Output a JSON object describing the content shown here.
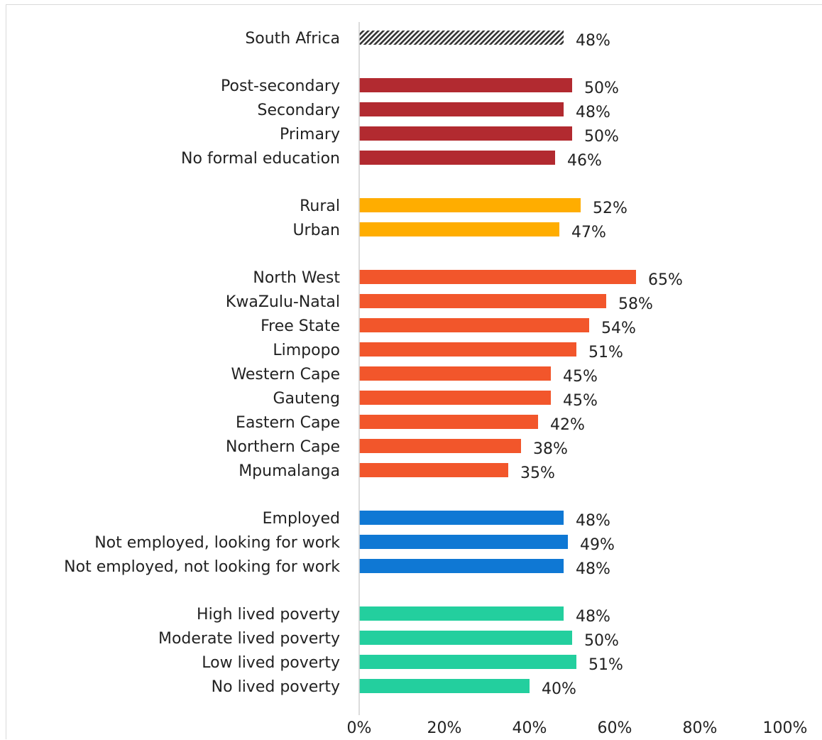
{
  "chart_data": {
    "type": "bar",
    "orientation": "horizontal",
    "xlim": [
      0,
      100
    ],
    "x_ticks": [
      "0%",
      "20%",
      "40%",
      "60%",
      "80%",
      "100%"
    ],
    "value_suffix": "%",
    "groups": [
      {
        "color": "#333333",
        "pattern": "hatched",
        "bars": [
          {
            "label": "South Africa",
            "value": 48
          }
        ]
      },
      {
        "color": "#b22a30",
        "bars": [
          {
            "label": "Post-secondary",
            "value": 50
          },
          {
            "label": "Secondary",
            "value": 48
          },
          {
            "label": "Primary",
            "value": 50
          },
          {
            "label": "No formal education",
            "value": 46
          }
        ]
      },
      {
        "color": "#ffad00",
        "bars": [
          {
            "label": "Rural",
            "value": 52
          },
          {
            "label": "Urban",
            "value": 47
          }
        ]
      },
      {
        "color": "#f2562b",
        "bars": [
          {
            "label": "North West",
            "value": 65
          },
          {
            "label": "KwaZulu-Natal",
            "value": 58
          },
          {
            "label": "Free State",
            "value": 54
          },
          {
            "label": "Limpopo",
            "value": 51
          },
          {
            "label": "Western Cape",
            "value": 45
          },
          {
            "label": "Gauteng",
            "value": 45
          },
          {
            "label": "Eastern Cape",
            "value": 42
          },
          {
            "label": "Northern Cape",
            "value": 38
          },
          {
            "label": "Mpumalanga",
            "value": 35
          }
        ]
      },
      {
        "color": "#0f78d4",
        "bars": [
          {
            "label": "Employed",
            "value": 48
          },
          {
            "label": "Not employed, looking for work",
            "value": 49
          },
          {
            "label": "Not employed, not looking for work",
            "value": 48
          }
        ]
      },
      {
        "color": "#23cf9e",
        "bars": [
          {
            "label": "High lived poverty",
            "value": 48
          },
          {
            "label": "Moderate lived poverty",
            "value": 50
          },
          {
            "label": "Low lived poverty",
            "value": 51
          },
          {
            "label": "No lived poverty",
            "value": 40
          }
        ]
      }
    ]
  }
}
